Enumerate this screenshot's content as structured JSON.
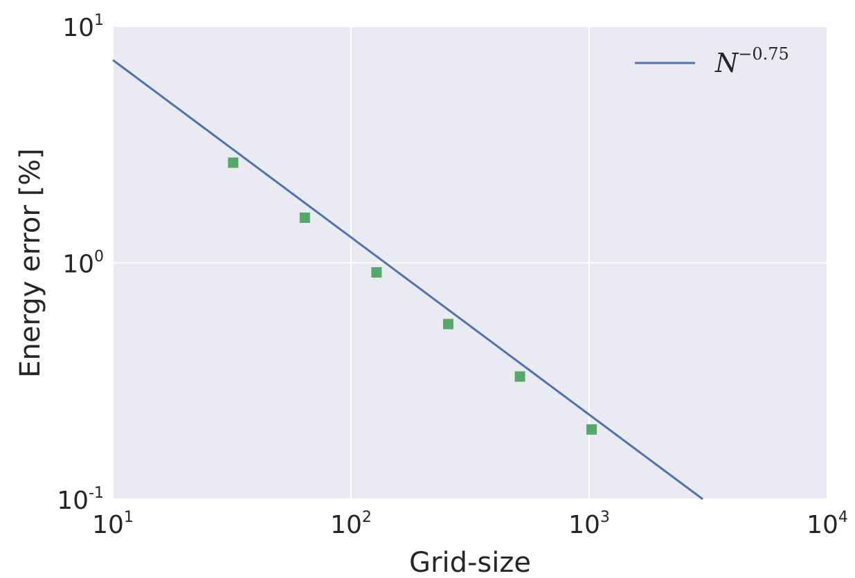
{
  "chart_data": {
    "type": "scatter",
    "xlabel": "Grid-size",
    "ylabel": "Energy error [%]",
    "xscale": "log",
    "yscale": "log",
    "xlim": [
      10,
      10000
    ],
    "ylim": [
      0.1,
      10
    ],
    "grid": true,
    "background_color": "#eaeaf2",
    "grid_color": "#ffffff",
    "x_ticks": [
      {
        "value": 10,
        "base": "10",
        "exp": "1"
      },
      {
        "value": 100,
        "base": "10",
        "exp": "2"
      },
      {
        "value": 1000,
        "base": "10",
        "exp": "3"
      },
      {
        "value": 10000,
        "base": "10",
        "exp": "4"
      }
    ],
    "y_ticks": [
      {
        "value": 0.1,
        "base": "10",
        "exp": "-1"
      },
      {
        "value": 1,
        "base": "10",
        "exp": "0"
      },
      {
        "value": 10,
        "base": "10",
        "exp": "1"
      }
    ],
    "legend": {
      "placement": "top-right",
      "entries": [
        {
          "base": "N",
          "exp": "−0.75",
          "series": "fit"
        }
      ]
    },
    "series": [
      {
        "kind": "line",
        "color": "#4c72b0",
        "coefficient": 40.5,
        "exponent": -0.75,
        "x_range": [
          10,
          3000
        ]
      },
      {
        "kind": "scatter",
        "marker": "square",
        "color": "#55a868",
        "x": [
          32,
          64,
          128,
          256,
          512,
          1024
        ],
        "y": [
          2.65,
          1.55,
          0.91,
          0.55,
          0.33,
          0.197
        ]
      }
    ]
  }
}
